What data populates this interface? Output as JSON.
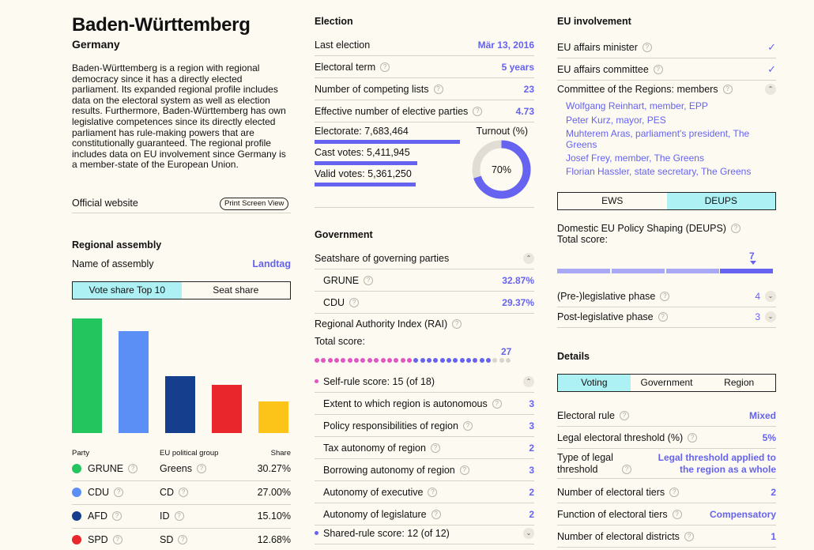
{
  "region": {
    "name": "Baden-Württemberg",
    "country": "Germany",
    "description": "Baden-Württemberg is a region with regional democracy since it has a directly elected parliament. Its expanded regional profile includes data on the electoral system as well as election results. Furthermore, Baden-Württemberg has own legislative competences since its directly elected parliament has rule-making powers that are constitutionally guaranteed. The regional profile includes data on EU involvement since Germany is a member-state of the European Union.",
    "official_website": "Official website",
    "print_button": "Print Screen View"
  },
  "assembly": {
    "title": "Regional assembly",
    "name_label": "Name of assembly",
    "name_value": "Landtag",
    "tabs": [
      "Vote share Top 10",
      "Seat share"
    ],
    "col_party": "Party",
    "col_group": "EU political group",
    "col_share": "Share",
    "parties": [
      {
        "party": "GRUNE",
        "group": "Greens",
        "share": "30.27%",
        "color": "#22c55e"
      },
      {
        "party": "CDU",
        "group": "CD",
        "share": "27.00%",
        "color": "#5b8ff5"
      },
      {
        "party": "AFD",
        "group": "ID",
        "share": "15.10%",
        "color": "#153f8c"
      },
      {
        "party": "SPD",
        "group": "SD",
        "share": "12.68%",
        "color": "#e8262b"
      }
    ]
  },
  "chart_data": {
    "type": "bar",
    "categories": [
      "GRUNE",
      "CDU",
      "AFD",
      "SPD",
      ""
    ],
    "values": [
      30.27,
      27.0,
      15.1,
      12.68,
      8.3
    ],
    "colors": [
      "#22c55e",
      "#5b8ff5",
      "#153f8c",
      "#e8262b",
      "#fcc419"
    ],
    "ylim": [
      0,
      30.27
    ]
  },
  "election": {
    "title": "Election",
    "last_label": "Last election",
    "last_value": "Mär 13, 2016",
    "term_label": "Electoral term",
    "term_value": "5 years",
    "lists_label": "Number of competing lists",
    "lists_value": "23",
    "parties_label": "Effective number of elective parties",
    "parties_value": "4.73",
    "electorate": "Electorate: 7,683,464",
    "cast": "Cast votes: 5,411,945",
    "valid": "Valid votes: 5,361,250",
    "turnout_label": "Turnout (%)",
    "turnout_value": "70%",
    "turnout_fraction": 0.7,
    "cast_fraction": 0.704,
    "valid_fraction": 0.698
  },
  "government": {
    "title": "Government",
    "seatshare_label": "Seatshare of governing parties",
    "parties": [
      {
        "name": "GRUNE",
        "value": "32.87%"
      },
      {
        "name": "CDU",
        "value": "29.37%"
      }
    ],
    "rai_label": "Regional Authority Index (RAI)",
    "total_label": "Total score:",
    "total_value": "27",
    "rai_total": 27,
    "rai_max": 30,
    "self_rule_label": "Self-rule score: 15 (of 18)",
    "self_rule_items": [
      {
        "label": "Extent to which region is autonomous",
        "value": "3"
      },
      {
        "label": "Policy responsibilities of region",
        "value": "3"
      },
      {
        "label": "Tax autonomy of region",
        "value": "2"
      },
      {
        "label": "Borrowing autonomy of region",
        "value": "3"
      },
      {
        "label": "Autonomy of executive",
        "value": "2"
      },
      {
        "label": "Autonomy of legislature",
        "value": "2"
      }
    ],
    "shared_rule_label": "Shared-rule score: 12 (of 12)",
    "self_rule_color": "#e256c1",
    "shared_rule_color": "#6563f0"
  },
  "eu": {
    "title": "EU involvement",
    "minister_label": "EU affairs minister",
    "committee_label": "EU affairs committee",
    "cor_label": "Committee of the Regions: members",
    "members": [
      "Wolfgang Reinhart, member, EPP",
      "Peter Kurz, mayor, PES",
      "Muhterem Aras, parliament's president, The Greens",
      "Josef Frey, member, The Greens",
      "Florian Hassler, state secretary, The Greens"
    ],
    "tabs": [
      "EWS",
      "DEUPS"
    ],
    "deups_label": "Domestic EU Policy Shaping (DEUPS)",
    "total_label": "Total score:",
    "total_value": "7",
    "deups_total": 7,
    "deups_max": 8,
    "pre_label": "(Pre-)legislative phase",
    "pre_value": "4",
    "post_label": "Post-legislative phase",
    "post_value": "3"
  },
  "details": {
    "title": "Details",
    "tabs": [
      "Voting",
      "Government",
      "Region"
    ],
    "rows": [
      {
        "label": "Electoral rule",
        "value": "Mixed"
      },
      {
        "label": "Legal electoral threshold (%)",
        "value": "5%"
      },
      {
        "label": "Type of legal threshold",
        "value": "Legal threshold applied to the region as a whole"
      },
      {
        "label": "Number of electoral tiers",
        "value": "2"
      },
      {
        "label": "Function of electoral tiers",
        "value": "Compensatory"
      },
      {
        "label": "Number of electoral districts",
        "value": "1"
      }
    ]
  }
}
